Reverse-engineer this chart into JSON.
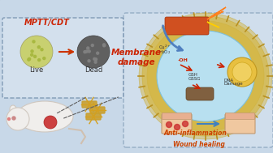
{
  "bg_color_top": "#c8d8e8",
  "bg_color_bottom": "#d0dce8",
  "title_mptt": "MPTT/CDT",
  "title_membrane": "Membrane\ndamage",
  "title_anti": "Anti-inflammation",
  "title_wound": "Wound healing",
  "label_live": "Live",
  "label_dead": "Dead",
  "cell_inner_color": "#b8e0f0",
  "cell_outer_color": "#d4b84a",
  "cell_outer_dark": "#b8962a",
  "membrane_text_color": "#cc2200",
  "anti_text_color": "#cc4400",
  "wound_text_color": "#cc4400",
  "mptt_text_color": "#cc2200",
  "arrow_color": "#cc3300",
  "nanostar_color": "#d4a020",
  "live_cell_color": "#c8d070",
  "dead_cell_color": "#606060",
  "mouse_color": "#f0f0f0",
  "laser_color": "#d05020",
  "blue_arrow_color": "#5080c0",
  "fig_width": 3.36,
  "fig_height": 1.89,
  "dpi": 100
}
